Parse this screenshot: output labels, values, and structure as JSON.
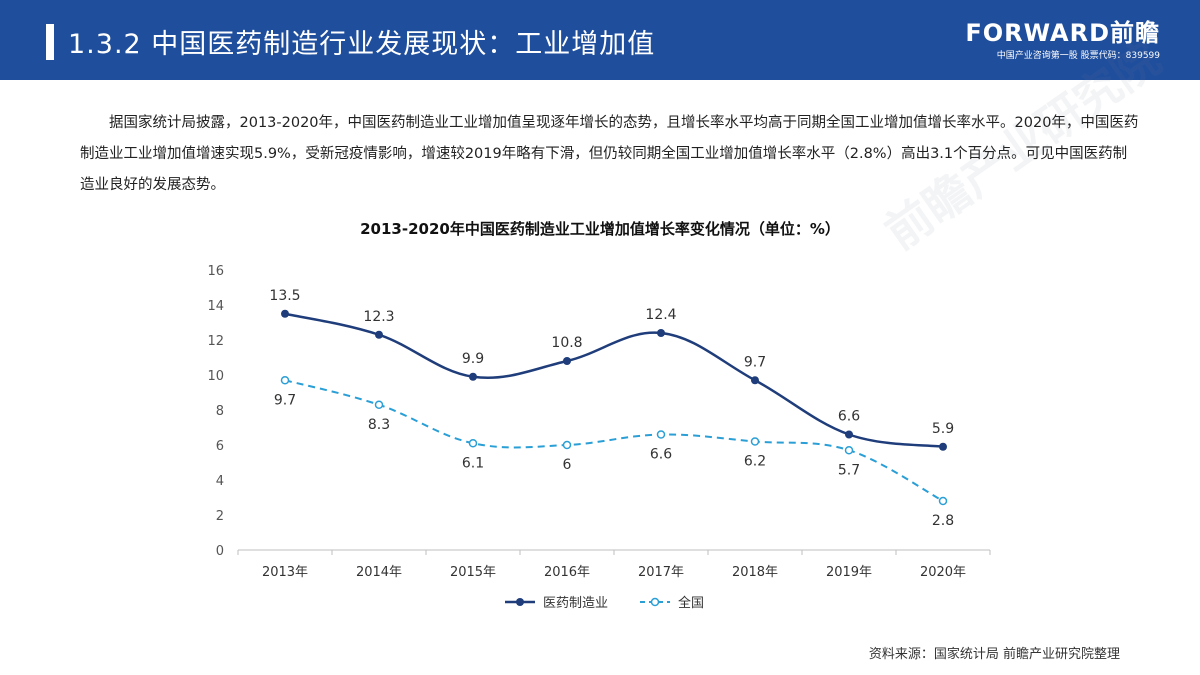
{
  "header": {
    "title": "1.3.2 中国医药制造行业发展现状：工业增加值",
    "brand_name": "FORWARD前瞻",
    "brand_sub": "中国产业咨询第一股  股票代码：839599"
  },
  "intro": "据国家统计局披露，2013-2020年，中国医药制造业工业增加值呈现逐年增长的态势，且增长率水平均高于同期全国工业增加值增长率水平。2020年，中国医药制造业工业增加值增速实现5.9%，受新冠疫情影响，增速较2019年略有下滑，但仍较同期全国工业增加值增长率水平（2.8%）高出3.1个百分点。可见中国医药制造业良好的发展态势。",
  "watermark": "前瞻产业研究院",
  "source": "资料来源：国家统计局 前瞻产业研究院整理",
  "chart_data": {
    "type": "line",
    "title": "2013-2020年中国医药制造业工业增加值增长率变化情况（单位：%）",
    "categories": [
      "2013年",
      "2014年",
      "2015年",
      "2016年",
      "2017年",
      "2018年",
      "2019年",
      "2020年"
    ],
    "series": [
      {
        "name": "医药制造业",
        "values": [
          13.5,
          12.3,
          9.9,
          10.8,
          12.4,
          9.7,
          6.6,
          5.9
        ],
        "color": "#1f3d7a",
        "style": "solid"
      },
      {
        "name": "全国",
        "values": [
          9.7,
          8.3,
          6.1,
          6.0,
          6.6,
          6.2,
          5.7,
          2.8
        ],
        "color": "#2a9fd6",
        "style": "dashed"
      }
    ],
    "ylim": [
      0,
      16
    ],
    "yticks": [
      0,
      2,
      4,
      6,
      8,
      10,
      12,
      14,
      16
    ],
    "grid": false,
    "legend": "bottom"
  }
}
